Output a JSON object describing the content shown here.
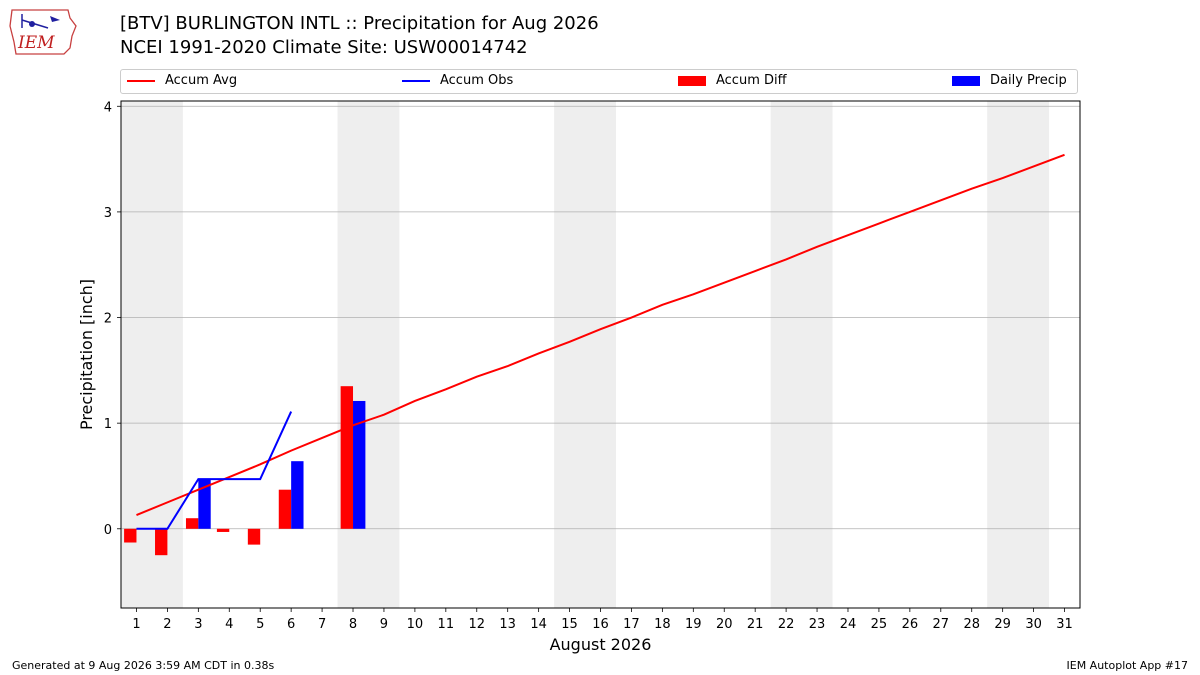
{
  "header": {
    "logo_text": "IEM",
    "title_line1": "[BTV] BURLINGTON INTL :: Precipitation for Aug 2026",
    "title_line2": "NCEI 1991-2020 Climate Site: USW00014742"
  },
  "footer": {
    "generated": "Generated at 9 Aug 2026 3:59 AM CDT in 0.38s",
    "app": "IEM Autoplot App #17"
  },
  "colors": {
    "avg": "#ff0000",
    "obs": "#0000ff",
    "diff": "#ff0000",
    "daily": "#0000ff",
    "shade": "#eeeeee",
    "grid": "#b0b0b0"
  },
  "chart_data": {
    "type": "bar",
    "xlabel": "August 2026",
    "ylabel": "Precipitation [inch]",
    "xlim": [
      0.5,
      31.5
    ],
    "ylim": [
      -0.75,
      4.05
    ],
    "yticks": [
      0,
      1,
      2,
      3,
      4
    ],
    "x": [
      1,
      2,
      3,
      4,
      5,
      6,
      7,
      8,
      9,
      10,
      11,
      12,
      13,
      14,
      15,
      16,
      17,
      18,
      19,
      20,
      21,
      22,
      23,
      24,
      25,
      26,
      27,
      28,
      29,
      30,
      31
    ],
    "xtick_labels": [
      "1",
      "2",
      "3",
      "4",
      "5",
      "6",
      "7",
      "8",
      "9",
      "10",
      "11",
      "12",
      "13",
      "14",
      "15",
      "16",
      "17",
      "18",
      "19",
      "20",
      "21",
      "22",
      "23",
      "24",
      "25",
      "26",
      "27",
      "28",
      "29",
      "30",
      "31"
    ],
    "weekend_shading": [
      [
        1,
        2
      ],
      [
        8,
        9
      ],
      [
        15,
        16
      ],
      [
        22,
        23
      ],
      [
        29,
        30
      ]
    ],
    "grid": true,
    "legend_position": "top",
    "series": [
      {
        "name": "Accum Avg",
        "type": "line",
        "x": [
          1,
          2,
          3,
          4,
          5,
          6,
          7,
          8,
          9,
          10,
          11,
          12,
          13,
          14,
          15,
          16,
          17,
          18,
          19,
          20,
          21,
          22,
          23,
          24,
          25,
          26,
          27,
          28,
          29,
          30,
          31
        ],
        "values": [
          0.13,
          0.25,
          0.37,
          0.49,
          0.61,
          0.74,
          0.86,
          0.98,
          1.08,
          1.21,
          1.32,
          1.44,
          1.54,
          1.66,
          1.77,
          1.89,
          2.0,
          2.12,
          2.22,
          2.33,
          2.44,
          2.55,
          2.67,
          2.78,
          2.89,
          3.0,
          3.11,
          3.22,
          3.32,
          3.43,
          3.54
        ]
      },
      {
        "name": "Accum Obs",
        "type": "line",
        "x": [
          1,
          2,
          3,
          4,
          5,
          6
        ],
        "values": [
          0.0,
          0.0,
          0.47,
          0.47,
          0.47,
          1.11
        ]
      },
      {
        "name": "Accum Diff",
        "type": "bar",
        "x": [
          1,
          2,
          3,
          4,
          5,
          6,
          8
        ],
        "values": [
          -0.13,
          -0.25,
          0.1,
          -0.03,
          -0.15,
          0.37,
          1.35
        ]
      },
      {
        "name": "Daily Precip",
        "type": "bar",
        "x": [
          3,
          6,
          8
        ],
        "values": [
          0.47,
          0.64,
          1.21
        ]
      }
    ]
  }
}
